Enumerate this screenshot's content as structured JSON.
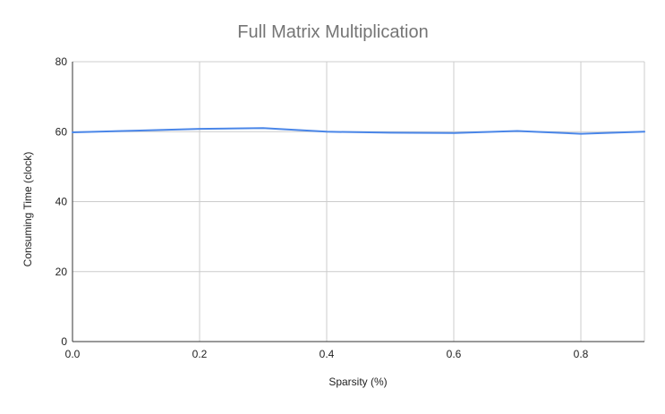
{
  "chart_data": {
    "type": "line",
    "title": "Full Matrix Multiplication",
    "xlabel": "Sparsity (%)",
    "ylabel": "Consuming Time (clock)",
    "xlim": [
      0,
      0.9
    ],
    "ylim": [
      0,
      80
    ],
    "x_ticks": [
      "0.0",
      "0.2",
      "0.4",
      "0.6",
      "0.8"
    ],
    "x_tick_values": [
      0,
      0.2,
      0.4,
      0.6,
      0.8
    ],
    "y_ticks": [
      "0",
      "20",
      "40",
      "60",
      "80"
    ],
    "y_tick_values": [
      0,
      20,
      40,
      60,
      80
    ],
    "grid": true,
    "legend": "none",
    "series": [
      {
        "color": "#4a86e8",
        "x": [
          0,
          0.1,
          0.2,
          0.3,
          0.4,
          0.5,
          0.6,
          0.7,
          0.8,
          0.9
        ],
        "y": [
          59.8,
          60.3,
          60.8,
          61.0,
          60.0,
          59.7,
          59.6,
          60.2,
          59.4,
          60.0
        ]
      }
    ]
  }
}
